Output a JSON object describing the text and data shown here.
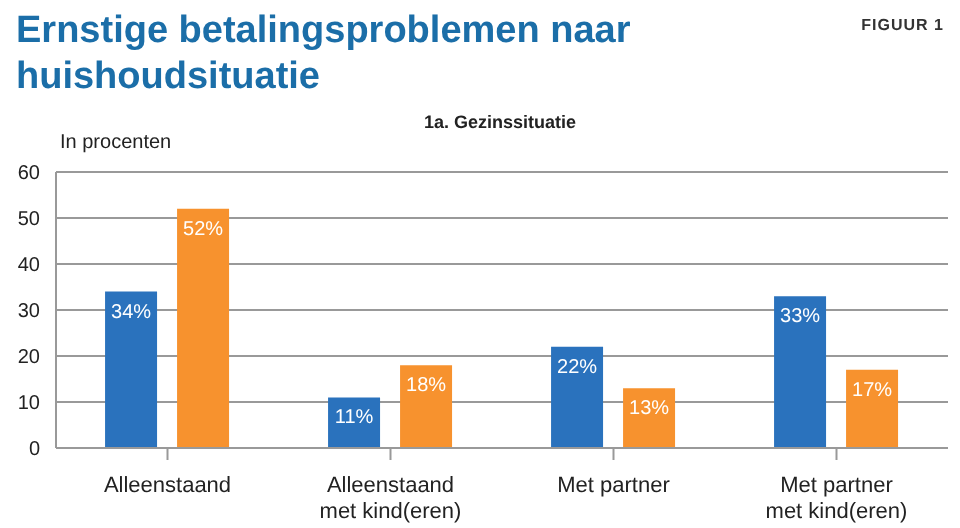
{
  "chart_data": {
    "type": "bar",
    "title": "Ernstige betalingsproblemen naar huishoudsituatie",
    "subtitle": "1a. Gezinssituatie",
    "ylabel": "In procenten",
    "annotations": [
      "FIGUUR 1"
    ],
    "categories": [
      "Alleenstaand",
      "Alleenstaand met kind(eren)",
      "Met partner",
      "Met partner met kind(eren)"
    ],
    "series": [
      {
        "color": "#2a72bd",
        "values": [
          34,
          11,
          22,
          33
        ],
        "value_labels": [
          "34%",
          "11%",
          "22%",
          "33%"
        ]
      },
      {
        "color": "#f7922e",
        "values": [
          52,
          18,
          13,
          17
        ],
        "value_labels": [
          "52%",
          "18%",
          "13%",
          "17%"
        ]
      }
    ],
    "ylim": [
      0,
      60
    ],
    "yticks": [
      0,
      10,
      20,
      30,
      40,
      50,
      60
    ],
    "grid": "y",
    "legend": false
  }
}
